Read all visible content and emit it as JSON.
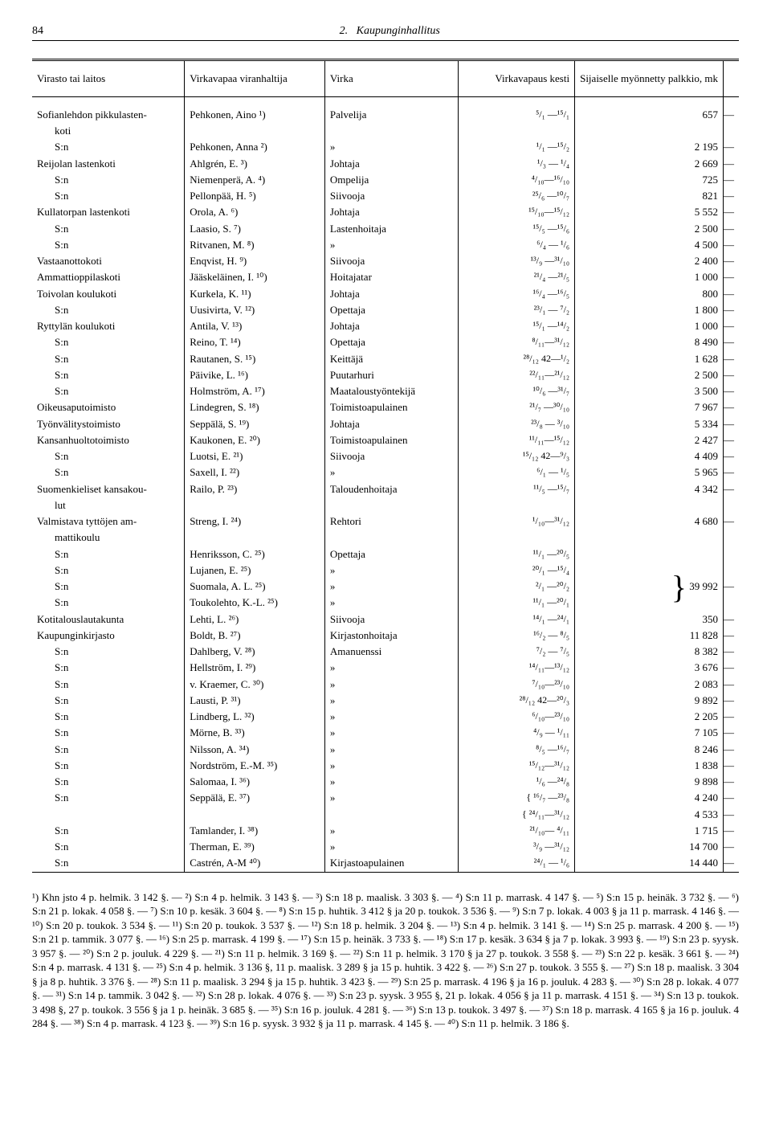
{
  "page": {
    "number": "84",
    "section": "2.",
    "title": "Kaupunginhallitus"
  },
  "columns": {
    "c1": "Virasto tai laitos",
    "c2": "Virkavapaa viranhaltija",
    "c3": "Virka",
    "c4": "Virkavapaus kesti",
    "c5": "Sijaiselle myönnetty palkkio, mk"
  },
  "rows": [
    {
      "v": "Sofianlehdon pikkulasten-",
      "p": "Pehkonen, Aino ¹)",
      "j": "Palvelija",
      "d": "⁵/₁ —¹⁵/₁",
      "a": "657",
      "t": "—"
    },
    {
      "v": "koti",
      "indent2": true
    },
    {
      "v": "S:n",
      "indent": true,
      "p": "Pehkonen, Anna ²)",
      "j": "»",
      "d": "¹/₁ —¹⁵/₂",
      "a": "2 195",
      "t": "—"
    },
    {
      "v": "Reijolan lastenkoti",
      "p": "Ahlgrén, E. ³)",
      "j": "Johtaja",
      "d": "¹/₃ — ¹/₄",
      "a": "2 669",
      "t": "—"
    },
    {
      "v": "S:n",
      "indent": true,
      "p": "Niemenperä, A. ⁴)",
      "j": "Ompelija",
      "d": "⁴/₁₀—¹⁶/₁₀",
      "a": "725",
      "t": "—"
    },
    {
      "v": "S:n",
      "indent": true,
      "p": "Pellonpää, H. ⁵)",
      "j": "Siivooja",
      "d": "²⁵/₆ —¹⁰/₇",
      "a": "821",
      "t": "—"
    },
    {
      "v": "Kullatorpan lastenkoti",
      "p": "Orola, A. ⁶)",
      "j": "Johtaja",
      "d": "¹⁵/₁₀—¹⁵/₁₂",
      "a": "5 552",
      "t": "—"
    },
    {
      "v": "S:n",
      "indent": true,
      "p": "Laasio, S. ⁷)",
      "j": "Lastenhoitaja",
      "d": "¹⁵/₅ —¹⁵/₆",
      "a": "2 500",
      "t": "—"
    },
    {
      "v": "S:n",
      "indent": true,
      "p": "Ritvanen, M. ⁸)",
      "j": "»",
      "d": "⁶/₄ — ¹/₆",
      "a": "4 500",
      "t": "—"
    },
    {
      "v": "Vastaanottokoti",
      "p": "Enqvist, H. ⁹)",
      "j": "Siivooja",
      "d": "¹³/₉ —³¹/₁₀",
      "a": "2 400",
      "t": "—"
    },
    {
      "v": "Ammattioppilaskoti",
      "p": "Jääskeläinen, I. ¹⁰)",
      "j": "Hoitajatar",
      "d": "²¹/₄ —²¹/₅",
      "a": "1 000",
      "t": "—"
    },
    {
      "v": "Toivolan koulukoti",
      "p": "Kurkela, K. ¹¹)",
      "j": "Johtaja",
      "d": "¹⁶/₄ —¹⁶/₅",
      "a": "800",
      "t": "—"
    },
    {
      "v": "S:n",
      "indent": true,
      "p": "Uusivirta, V. ¹²)",
      "j": "Opettaja",
      "d": "²³/₁ — ⁷/₂",
      "a": "1 800",
      "t": "—"
    },
    {
      "v": "Ryttylän koulukoti",
      "p": "Antila, V. ¹³)",
      "j": "Johtaja",
      "d": "¹⁵/₁ —¹⁴/₂",
      "a": "1 000",
      "t": "—"
    },
    {
      "v": "S:n",
      "indent": true,
      "p": "Reino, T. ¹⁴)",
      "j": "Opettaja",
      "d": "⁸/₁₁—³¹/₁₂",
      "a": "8 490",
      "t": "—"
    },
    {
      "v": "S:n",
      "indent": true,
      "p": "Rautanen, S. ¹⁵)",
      "j": "Keittäjä",
      "d": "²⁸/₁₂ 42—¹/₂",
      "a": "1 628",
      "t": "—"
    },
    {
      "v": "S:n",
      "indent": true,
      "p": "Päivike, L. ¹⁶)",
      "j": "Puutarhuri",
      "d": "²²/₁₁—²¹/₁₂",
      "a": "2 500",
      "t": "—"
    },
    {
      "v": "S:n",
      "indent": true,
      "p": "Holmström, A. ¹⁷)",
      "j": "Maataloustyöntekijä",
      "d": "¹⁰/₆ —³¹/₇",
      "a": "3 500",
      "t": "—"
    },
    {
      "v": "Oikeusaputoimisto",
      "p": "Lindegren, S. ¹⁸)",
      "j": "Toimistoapulainen",
      "d": "²¹/₇ —³⁰/₁₀",
      "a": "7 967",
      "t": "—"
    },
    {
      "v": "Työnvälitystoimisto",
      "p": "Seppälä, S. ¹⁹)",
      "j": "Johtaja",
      "d": "²³/₈ — ³/₁₀",
      "a": "5 334",
      "t": "—"
    },
    {
      "v": "Kansanhuoltotoimisto",
      "p": "Kaukonen, E. ²⁰)",
      "j": "Toimistoapulainen",
      "d": "¹¹/₁₁—¹⁵/₁₂",
      "a": "2 427",
      "t": "—"
    },
    {
      "v": "S:n",
      "indent": true,
      "p": "Luotsi, E. ²¹)",
      "j": "Siivooja",
      "d": "¹⁵/₁₂ 42—⁹/₃",
      "a": "4 409",
      "t": "—"
    },
    {
      "v": "S:n",
      "indent": true,
      "p": "Saxell, I. ²²)",
      "j": "»",
      "d": "⁶/₁ — ¹/₅",
      "a": "5 965",
      "t": "—"
    },
    {
      "v": "Suomenkieliset kansakou-",
      "p": "Railo, P. ²³)",
      "j": "Taloudenhoitaja",
      "d": "¹¹/₅ —¹⁵/₇",
      "a": "4 342",
      "t": "—"
    },
    {
      "v": "lut",
      "indent2": true
    },
    {
      "v": "Valmistava tyttöjen am-",
      "p": "Streng, I. ²⁴)",
      "j": "Rehtori",
      "d": "¹/₁₀—³¹/₁₂",
      "a": "4 680",
      "t": "—"
    },
    {
      "v": "mattikoulu",
      "indent2": true
    },
    {
      "v": "S:n",
      "indent": true,
      "p": "Henriksson, C. ²⁵)",
      "j": "Opettaja",
      "d": "¹¹/₁ —²⁰/₅",
      "a": "",
      "t": ""
    },
    {
      "v": "S:n",
      "indent": true,
      "p": "Lujanen, E. ²⁵)",
      "j": "»",
      "d": "²⁰/₁ —¹⁵/₄",
      "a": "",
      "t": "",
      "braceTop": true
    },
    {
      "v": "S:n",
      "indent": true,
      "p": "Suomala, A. L. ²⁵)",
      "j": "»",
      "d": "²/₁ —²⁰/₂",
      "a": "39 992",
      "t": "—",
      "braceMid": true
    },
    {
      "v": "S:n",
      "indent": true,
      "p": "Toukolehto, K.-L. ²⁵)",
      "j": "»",
      "d": "¹¹/₁ —²⁰/₁",
      "a": "",
      "t": "",
      "braceBot": true
    },
    {
      "v": "Kotitalouslautakunta",
      "p": "Lehti, L. ²⁶)",
      "j": "Siivooja",
      "d": "¹⁴/₁ —²⁴/₁",
      "a": "350",
      "t": "—"
    },
    {
      "v": "Kaupunginkirjasto",
      "p": "Boldt, B. ²⁷)",
      "j": "Kirjastonhoitaja",
      "d": "¹⁶/₂ — ⁸/₅",
      "a": "11 828",
      "t": "—"
    },
    {
      "v": "S:n",
      "indent": true,
      "p": "Dahlberg, V. ²⁸)",
      "j": "Amanuenssi",
      "d": "⁷/₂ — ⁷/₅",
      "a": "8 382",
      "t": "—"
    },
    {
      "v": "S:n",
      "indent": true,
      "p": "Hellström, I. ²⁹)",
      "j": "»",
      "d": "¹⁴/₁₁—¹³/₁₂",
      "a": "3 676",
      "t": "—"
    },
    {
      "v": "S:n",
      "indent": true,
      "p": "v. Kraemer, C. ³⁰)",
      "j": "»",
      "d": "⁷/₁₀—²³/₁₀",
      "a": "2 083",
      "t": "—"
    },
    {
      "v": "S:n",
      "indent": true,
      "p": "Lausti, P. ³¹)",
      "j": "»",
      "d": "²⁸/₁₂ 42—²⁰/₃",
      "a": "9 892",
      "t": "—"
    },
    {
      "v": "S:n",
      "indent": true,
      "p": "Lindberg, L. ³²)",
      "j": "»",
      "d": "⁶/₁₀—²³/₁₀",
      "a": "2 205",
      "t": "—"
    },
    {
      "v": "S:n",
      "indent": true,
      "p": "Mörne, B. ³³)",
      "j": "»",
      "d": "⁴/₉ — ¹/₁₁",
      "a": "7 105",
      "t": "—"
    },
    {
      "v": "S:n",
      "indent": true,
      "p": "Nilsson, A. ³⁴)",
      "j": "»",
      "d": "⁸/₅ —¹⁶/₇",
      "a": "8 246",
      "t": "—"
    },
    {
      "v": "S:n",
      "indent": true,
      "p": "Nordström, E.-M. ³⁵)",
      "j": "»",
      "d": "¹⁵/₁₂—³¹/₁₂",
      "a": "1 838",
      "t": "—"
    },
    {
      "v": "S:n",
      "indent": true,
      "p": "Salomaa, I. ³⁶)",
      "j": "»",
      "d": "¹/₆ —²⁴/₈",
      "a": "9 898",
      "t": "—"
    },
    {
      "v": "S:n",
      "indent": true,
      "p": "Seppälä, E. ³⁷)",
      "j": "»",
      "d": "{ ¹⁶/₇ —²³/₈",
      "a": "4 240",
      "t": "—"
    },
    {
      "v": "",
      "p": "",
      "j": "",
      "d": "{ ²⁴/₁₁—³¹/₁₂",
      "a": "4 533",
      "t": "—"
    },
    {
      "v": "S:n",
      "indent": true,
      "p": "Tamlander, I. ³⁸)",
      "j": "»",
      "d": "²¹/₁₀— ⁴/₁₁",
      "a": "1 715",
      "t": "—"
    },
    {
      "v": "S:n",
      "indent": true,
      "p": "Therman, E. ³⁹)",
      "j": "»",
      "d": "³/₉ —³¹/₁₂",
      "a": "14 700",
      "t": "—"
    },
    {
      "v": "S:n",
      "indent": true,
      "p": "Castrén, A-M ⁴⁰)",
      "j": "Kirjastoapulainen",
      "d": "²⁴/₁ — ¹/₆",
      "a": "14 440",
      "t": "—"
    }
  ],
  "footnotes": "¹) Khn jsto 4 p. helmik. 3 142 §. — ²) S:n 4 p. helmik. 3 143 §. — ³) S:n 18 p. maalisk. 3 303 §. — ⁴) S:n 11 p. marrask. 4 147 §. — ⁵) S:n 15 p. heinäk. 3 732 §. — ⁶) S:n 21 p. lokak. 4 058 §. — ⁷) S:n 10 p. kesäk. 3 604 §. — ⁸) S:n 15 p. huhtik. 3 412 § ja 20 p. toukok. 3 536 §. — ⁹) S:n 7 p. lokak. 4 003 § ja 11 p. marrask. 4 146 §. — ¹⁰) S:n 20 p. toukok. 3 534 §. — ¹¹) S:n 20 p. toukok. 3 537 §. — ¹²) S:n 18 p. helmik. 3 204 §. — ¹³) S:n 4 p. helmik. 3 141 §. — ¹⁴) S:n 25 p. marrask. 4 200 §. — ¹⁵) S:n 21 p. tammik. 3 077 §. — ¹⁶) S:n 25 p. marrask. 4 199 §. — ¹⁷) S:n 15 p. heinäk. 3 733 §. — ¹⁸) S:n 17 p. kesäk. 3 634 § ja 7 p. lokak. 3 993 §. — ¹⁹) S:n 23 p. syysk. 3 957 §. — ²⁰) S:n 2 p. jouluk. 4 229 §. — ²¹) S:n 11 p. helmik. 3 169 §. — ²²) S:n 11 p. helmik. 3 170 § ja 27 p. toukok. 3 558 §. — ²³) S:n 22 p. kesäk. 3 661 §. — ²⁴) S:n 4 p. marrask. 4 131 §. — ²⁵) S:n 4 p. helmik. 3 136 §, 11 p. maalisk. 3 289 § ja 15 p. huhtik. 3 422 §. — ²⁶) S:n 27 p. toukok. 3 555 §. — ²⁷) S:n 18 p. maalisk. 3 304 § ja 8 p. huhtik. 3 376 §. — ²⁸) S:n 11 p. maalisk. 3 294 § ja 15 p. huhtik. 3 423 §. — ²⁹) S:n 25 p. marrask. 4 196 § ja 16 p. jouluk. 4 283 §. — ³⁰) S:n 28 p. lokak. 4 077 §. — ³¹) S:n 14 p. tammik. 3 042 §. — ³²) S:n 28 p. lokak. 4 076 §. — ³³) S:n 23 p. syysk. 3 955 §, 21 p. lokak. 4 056 § ja 11 p. marrask. 4 151 §. — ³⁴) S:n 13 p. toukok. 3 498 §, 27 p. toukok. 3 556 § ja 1 p. heinäk. 3 685 §. — ³⁵) S:n 16 p. jouluk. 4 281 §. — ³⁶) S:n 13 p. toukok. 3 497 §. — ³⁷) S:n 18 p. marrask. 4 165 § ja 16 p. jouluk. 4 284 §. — ³⁸) S:n 4 p. marrask. 4 123 §. — ³⁹) S:n 16 p. syysk. 3 932 § ja 11 p. marrask. 4 145 §. — ⁴⁰) S:n 11 p. helmik. 3 186 §."
}
